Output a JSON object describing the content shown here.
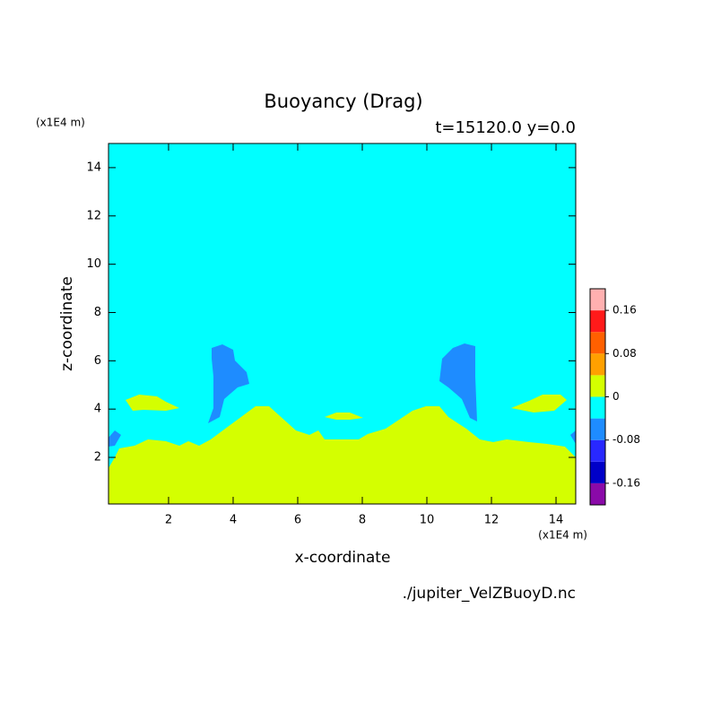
{
  "chart_data": {
    "type": "contour",
    "title": "Buoyancy (Drag)",
    "subtitle": "t=15120.0 y=0.0",
    "x_label": "x-coordinate",
    "y_label": "z-coordinate",
    "x_unit": "(x1E4 m)",
    "y_unit": "(x1E4 m)",
    "source": "./jupiter_VelZBuoyD.nc",
    "xlim": [
      0.14,
      14.61
    ],
    "ylim": [
      0.07,
      15.0
    ],
    "xticks": [
      2,
      4,
      6,
      8,
      10,
      12,
      14
    ],
    "yticks": [
      2,
      4,
      6,
      8,
      10,
      12,
      14
    ],
    "colorbar": {
      "levels": [
        -0.2,
        -0.16,
        -0.12,
        -0.08,
        -0.04,
        0,
        0.04,
        0.08,
        0.12,
        0.16,
        0.2
      ],
      "colors": [
        "#8a0aa8",
        "#0000c8",
        "#2828ff",
        "#1e8cff",
        "#00ffff",
        "#d4ff00",
        "#ffa000",
        "#ff6000",
        "#ff1a1a",
        "#ffb0b0"
      ],
      "ticks": [
        -0.16,
        -0.08,
        0,
        0.08,
        0.16
      ]
    }
  }
}
